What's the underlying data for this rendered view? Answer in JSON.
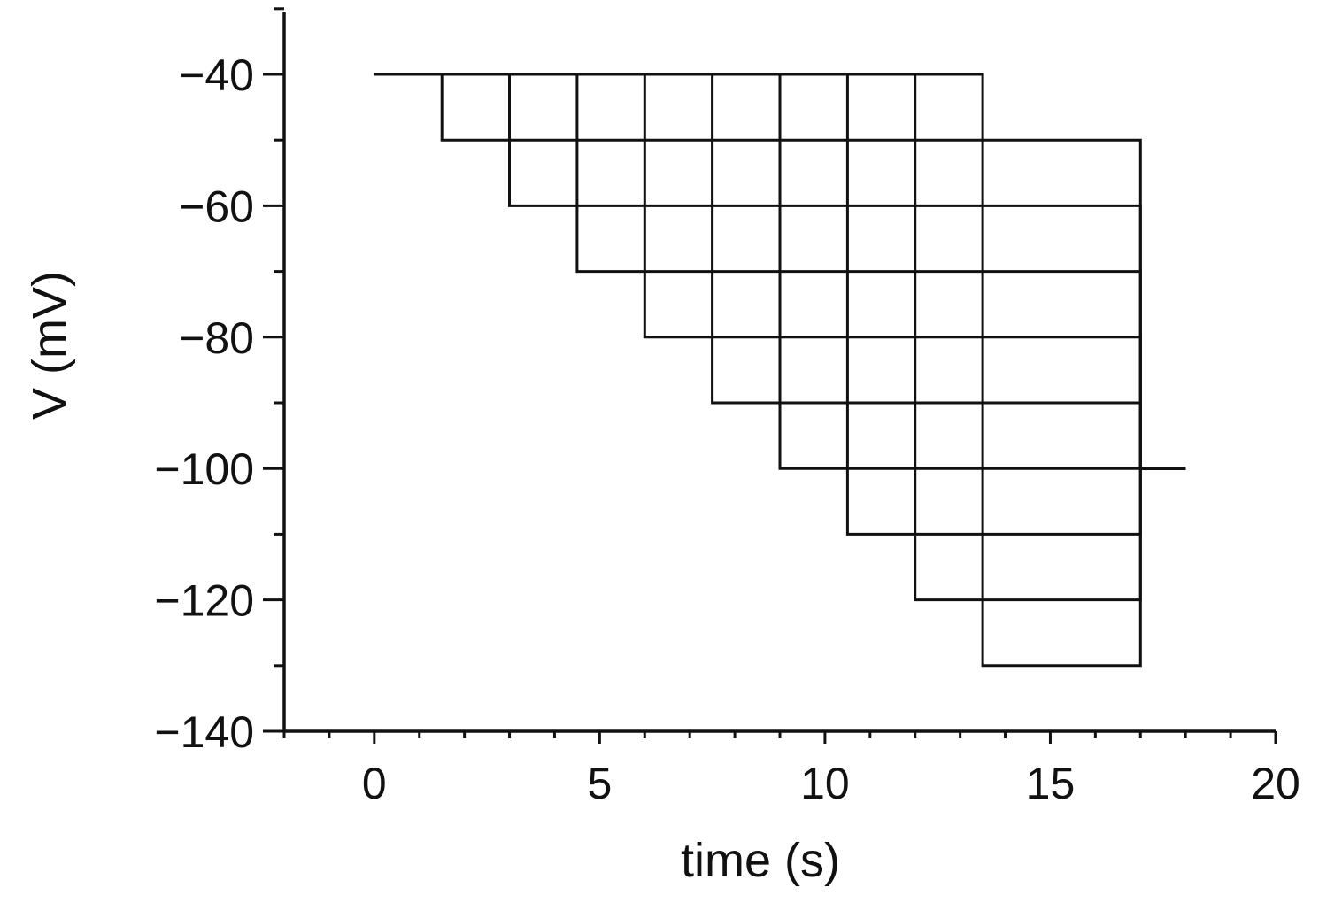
{
  "chart_data": {
    "type": "line",
    "title": "",
    "xlabel": "time (s)",
    "ylabel": "V (mV)",
    "xlim": [
      -2,
      20
    ],
    "ylim": [
      -140,
      -30
    ],
    "x_ticks": [
      0,
      5,
      10,
      15,
      20
    ],
    "x_tick_labels": [
      "0",
      "5",
      "10",
      "15",
      "20"
    ],
    "x_minor_step": 1,
    "y_ticks": [
      -140,
      -120,
      -100,
      -80,
      -60,
      -40
    ],
    "y_tick_labels": [
      "−140",
      "−120",
      "−100",
      "−80",
      "−60",
      "−40"
    ],
    "y_minor_step": 10,
    "grid": false,
    "legend": "none",
    "line_color": "#111111",
    "holding_potential_mV": -40,
    "return_potential_mV": -100,
    "trace_start_s": 0,
    "protocol_end_s": 17,
    "trace_end_s": 18,
    "series": [
      {
        "values": [
          {
            "x": 0,
            "y": -40
          },
          {
            "x": 1.5,
            "y": -40
          },
          {
            "x": 1.5,
            "y": -50
          },
          {
            "x": 17,
            "y": -50
          },
          {
            "x": 17,
            "y": -100
          },
          {
            "x": 18,
            "y": -100
          }
        ]
      },
      {
        "values": [
          {
            "x": 0,
            "y": -40
          },
          {
            "x": 3,
            "y": -40
          },
          {
            "x": 3,
            "y": -60
          },
          {
            "x": 17,
            "y": -60
          },
          {
            "x": 17,
            "y": -100
          },
          {
            "x": 18,
            "y": -100
          }
        ]
      },
      {
        "values": [
          {
            "x": 0,
            "y": -40
          },
          {
            "x": 4.5,
            "y": -40
          },
          {
            "x": 4.5,
            "y": -70
          },
          {
            "x": 17,
            "y": -70
          },
          {
            "x": 17,
            "y": -100
          },
          {
            "x": 18,
            "y": -100
          }
        ]
      },
      {
        "values": [
          {
            "x": 0,
            "y": -40
          },
          {
            "x": 6,
            "y": -40
          },
          {
            "x": 6,
            "y": -80
          },
          {
            "x": 17,
            "y": -80
          },
          {
            "x": 17,
            "y": -100
          },
          {
            "x": 18,
            "y": -100
          }
        ]
      },
      {
        "values": [
          {
            "x": 0,
            "y": -40
          },
          {
            "x": 7.5,
            "y": -40
          },
          {
            "x": 7.5,
            "y": -90
          },
          {
            "x": 17,
            "y": -90
          },
          {
            "x": 17,
            "y": -100
          },
          {
            "x": 18,
            "y": -100
          }
        ]
      },
      {
        "values": [
          {
            "x": 0,
            "y": -40
          },
          {
            "x": 9,
            "y": -40
          },
          {
            "x": 9,
            "y": -100
          },
          {
            "x": 17,
            "y": -100
          },
          {
            "x": 17,
            "y": -100
          },
          {
            "x": 18,
            "y": -100
          }
        ]
      },
      {
        "values": [
          {
            "x": 0,
            "y": -40
          },
          {
            "x": 10.5,
            "y": -40
          },
          {
            "x": 10.5,
            "y": -110
          },
          {
            "x": 17,
            "y": -110
          },
          {
            "x": 17,
            "y": -100
          },
          {
            "x": 18,
            "y": -100
          }
        ]
      },
      {
        "values": [
          {
            "x": 0,
            "y": -40
          },
          {
            "x": 12,
            "y": -40
          },
          {
            "x": 12,
            "y": -120
          },
          {
            "x": 17,
            "y": -120
          },
          {
            "x": 17,
            "y": -100
          },
          {
            "x": 18,
            "y": -100
          }
        ]
      },
      {
        "values": [
          {
            "x": 0,
            "y": -40
          },
          {
            "x": 13.5,
            "y": -40
          },
          {
            "x": 13.5,
            "y": -130
          },
          {
            "x": 17,
            "y": -130
          },
          {
            "x": 17,
            "y": -100
          },
          {
            "x": 18,
            "y": -100
          }
        ]
      }
    ]
  }
}
